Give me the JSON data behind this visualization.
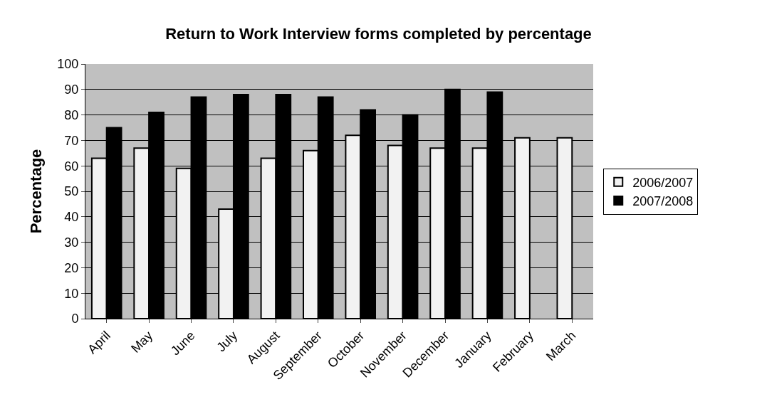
{
  "chart_data": {
    "type": "bar",
    "title": "Return to Work Interview forms completed by percentage",
    "ylabel": "Percentage",
    "categories": [
      "April",
      "May",
      "June",
      "July",
      "August",
      "September",
      "October",
      "November",
      "December",
      "January",
      "February",
      "March"
    ],
    "series": [
      {
        "name": "2006/2007",
        "color": "#f2f2f2",
        "values": [
          63,
          67,
          59,
          43,
          63,
          66,
          72,
          68,
          67,
          67,
          71,
          71
        ]
      },
      {
        "name": "2007/2008",
        "color": "#000000",
        "values": [
          75,
          81,
          87,
          88,
          88,
          87,
          82,
          80,
          90,
          89,
          null,
          null
        ]
      }
    ],
    "ylim": [
      0,
      100
    ],
    "yticks": [
      0,
      10,
      20,
      30,
      40,
      50,
      60,
      70,
      80,
      90,
      100
    ],
    "grid": "y",
    "legend": "right"
  }
}
